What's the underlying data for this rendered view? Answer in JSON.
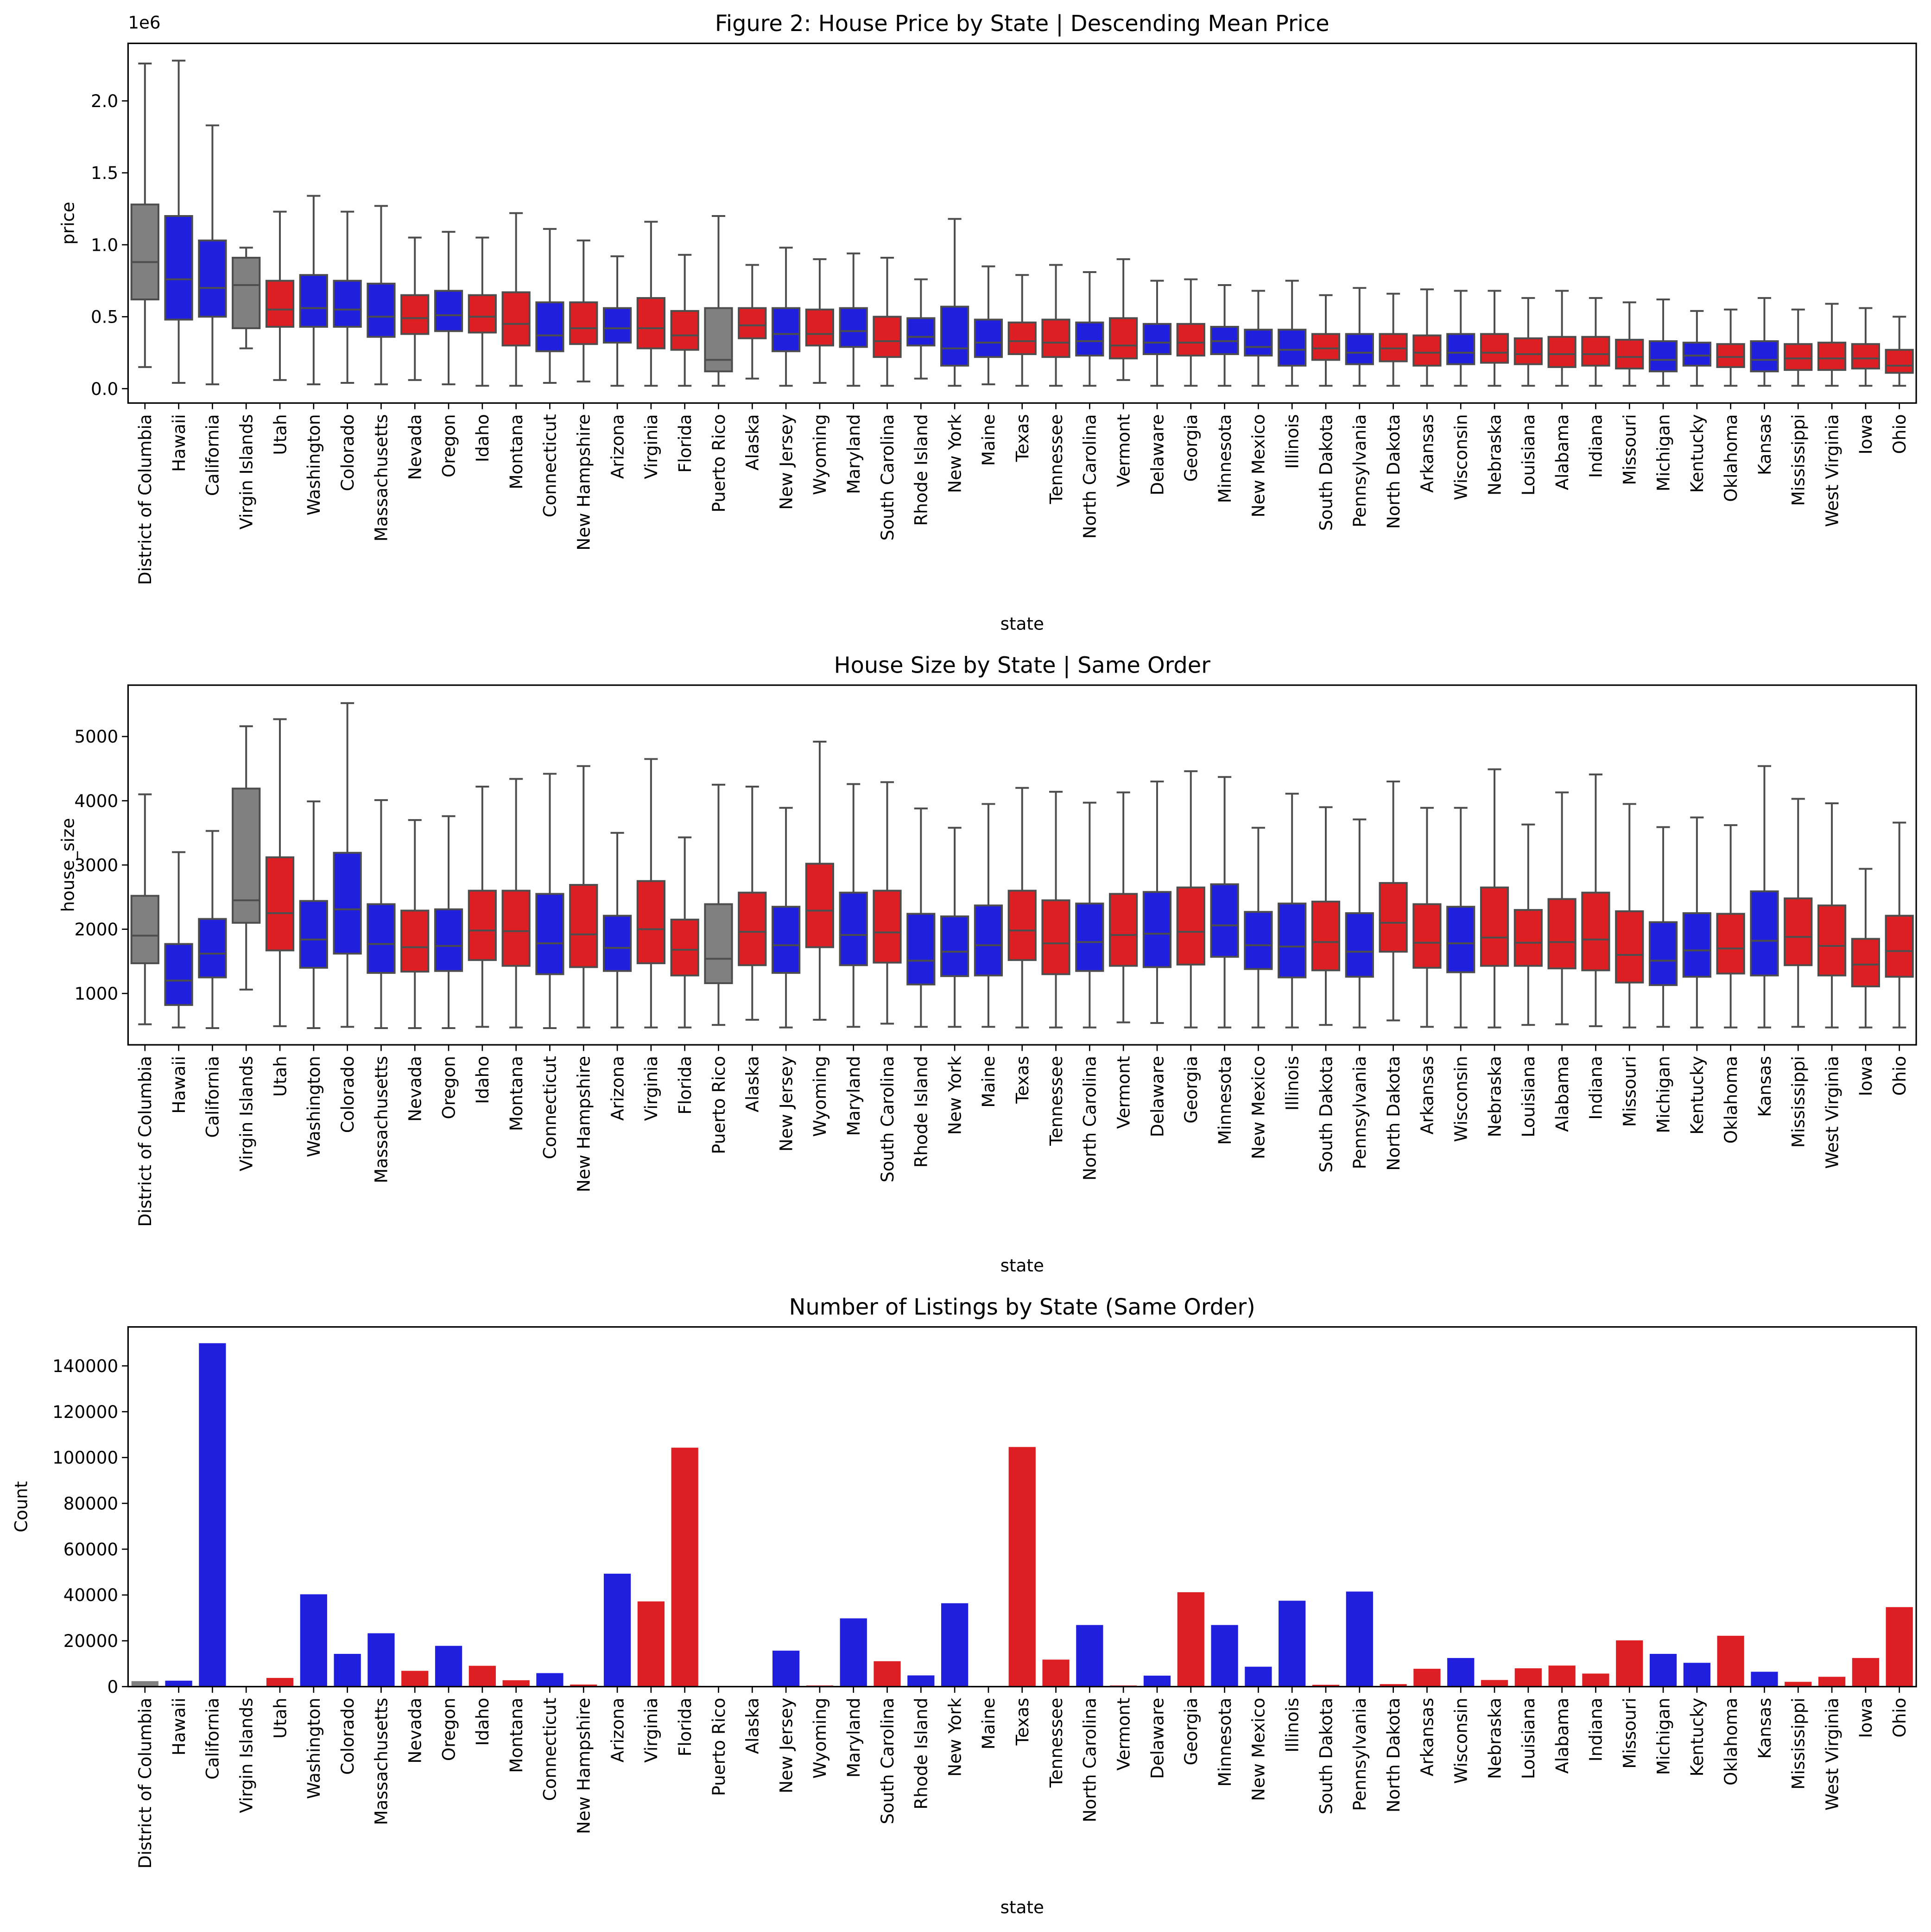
{
  "chart_data": [
    {
      "type": "box",
      "title": "Figure 2: House Price by State | Descending Mean Price",
      "xlabel": "state",
      "ylabel": "price",
      "offset_text": "1e6",
      "ylim": [
        -0.1,
        2.4
      ],
      "yticks": [
        "0.0",
        "0.5",
        "1.0",
        "1.5",
        "2.0"
      ],
      "ytick_values": [
        0,
        0.5,
        1.0,
        1.5,
        2.0
      ],
      "scale": 1000000,
      "boxes": [
        [
          0.15,
          0.62,
          0.88,
          1.28,
          2.26
        ],
        [
          0.04,
          0.48,
          0.76,
          1.2,
          2.28
        ],
        [
          0.03,
          0.5,
          0.7,
          1.03,
          1.83
        ],
        [
          0.28,
          0.42,
          0.72,
          0.91,
          0.98
        ],
        [
          0.06,
          0.43,
          0.55,
          0.75,
          1.23
        ],
        [
          0.03,
          0.43,
          0.56,
          0.79,
          1.34
        ],
        [
          0.04,
          0.43,
          0.55,
          0.75,
          1.23
        ],
        [
          0.03,
          0.36,
          0.5,
          0.73,
          1.27
        ],
        [
          0.06,
          0.38,
          0.49,
          0.65,
          1.05
        ],
        [
          0.03,
          0.4,
          0.51,
          0.68,
          1.09
        ],
        [
          0.02,
          0.39,
          0.5,
          0.65,
          1.05
        ],
        [
          0.02,
          0.3,
          0.45,
          0.67,
          1.22
        ],
        [
          0.04,
          0.26,
          0.37,
          0.6,
          1.11
        ],
        [
          0.05,
          0.31,
          0.42,
          0.6,
          1.03
        ],
        [
          0.02,
          0.32,
          0.42,
          0.56,
          0.92
        ],
        [
          0.02,
          0.28,
          0.42,
          0.63,
          1.16
        ],
        [
          0.02,
          0.27,
          0.37,
          0.54,
          0.93
        ],
        [
          0.02,
          0.12,
          0.2,
          0.56,
          1.2
        ],
        [
          0.07,
          0.35,
          0.44,
          0.56,
          0.86
        ],
        [
          0.02,
          0.26,
          0.38,
          0.56,
          0.98
        ],
        [
          0.04,
          0.3,
          0.38,
          0.55,
          0.9
        ],
        [
          0.02,
          0.29,
          0.4,
          0.56,
          0.94
        ],
        [
          0.02,
          0.22,
          0.33,
          0.5,
          0.91
        ],
        [
          0.07,
          0.3,
          0.36,
          0.49,
          0.76
        ],
        [
          0.02,
          0.16,
          0.28,
          0.57,
          1.18
        ],
        [
          0.03,
          0.22,
          0.32,
          0.48,
          0.85
        ],
        [
          0.02,
          0.24,
          0.33,
          0.46,
          0.79
        ],
        [
          0.02,
          0.22,
          0.32,
          0.48,
          0.86
        ],
        [
          0.02,
          0.23,
          0.33,
          0.46,
          0.81
        ],
        [
          0.06,
          0.21,
          0.3,
          0.49,
          0.9
        ],
        [
          0.02,
          0.24,
          0.32,
          0.45,
          0.75
        ],
        [
          0.02,
          0.23,
          0.32,
          0.45,
          0.76
        ],
        [
          0.02,
          0.24,
          0.33,
          0.43,
          0.72
        ],
        [
          0.02,
          0.23,
          0.29,
          0.41,
          0.68
        ],
        [
          0.02,
          0.16,
          0.27,
          0.41,
          0.75
        ],
        [
          0.02,
          0.2,
          0.28,
          0.38,
          0.65
        ],
        [
          0.02,
          0.17,
          0.25,
          0.38,
          0.7
        ],
        [
          0.02,
          0.19,
          0.28,
          0.38,
          0.66
        ],
        [
          0.02,
          0.16,
          0.25,
          0.37,
          0.69
        ],
        [
          0.02,
          0.17,
          0.25,
          0.38,
          0.68
        ],
        [
          0.02,
          0.18,
          0.25,
          0.38,
          0.68
        ],
        [
          0.02,
          0.17,
          0.24,
          0.35,
          0.63
        ],
        [
          0.02,
          0.15,
          0.24,
          0.36,
          0.68
        ],
        [
          0.02,
          0.16,
          0.24,
          0.36,
          0.63
        ],
        [
          0.02,
          0.14,
          0.22,
          0.34,
          0.6
        ],
        [
          0.02,
          0.12,
          0.2,
          0.33,
          0.62
        ],
        [
          0.02,
          0.16,
          0.23,
          0.32,
          0.54
        ],
        [
          0.02,
          0.15,
          0.22,
          0.31,
          0.55
        ],
        [
          0.02,
          0.12,
          0.2,
          0.33,
          0.63
        ],
        [
          0.02,
          0.13,
          0.21,
          0.31,
          0.55
        ],
        [
          0.02,
          0.13,
          0.21,
          0.32,
          0.59
        ],
        [
          0.02,
          0.14,
          0.21,
          0.31,
          0.56
        ],
        [
          0.02,
          0.11,
          0.16,
          0.27,
          0.5
        ]
      ]
    },
    {
      "type": "box",
      "title": "House Size by State | Same Order",
      "xlabel": "state",
      "ylabel": "house_size",
      "ylim": [
        200,
        5800
      ],
      "yticks": [
        "1000",
        "2000",
        "3000",
        "4000",
        "5000"
      ],
      "ytick_values": [
        1000,
        2000,
        3000,
        4000,
        5000
      ],
      "scale": 1,
      "boxes": [
        [
          520,
          1470,
          1900,
          2520,
          4100
        ],
        [
          470,
          820,
          1200,
          1770,
          3200
        ],
        [
          460,
          1250,
          1620,
          2160,
          3530
        ],
        [
          1060,
          2100,
          2450,
          4190,
          5160
        ],
        [
          490,
          1670,
          2250,
          3120,
          5270
        ],
        [
          460,
          1400,
          1840,
          2440,
          3990
        ],
        [
          480,
          1620,
          2310,
          3190,
          5520
        ],
        [
          460,
          1320,
          1770,
          2390,
          4010
        ],
        [
          460,
          1340,
          1720,
          2290,
          3700
        ],
        [
          460,
          1350,
          1740,
          2310,
          3760
        ],
        [
          480,
          1520,
          1980,
          2600,
          4220
        ],
        [
          470,
          1430,
          1970,
          2600,
          4340
        ],
        [
          460,
          1300,
          1780,
          2550,
          4420
        ],
        [
          470,
          1410,
          1920,
          2690,
          4540
        ],
        [
          470,
          1350,
          1710,
          2210,
          3500
        ],
        [
          470,
          1470,
          2000,
          2750,
          4650
        ],
        [
          470,
          1280,
          1680,
          2150,
          3430
        ],
        [
          510,
          1160,
          1540,
          2390,
          4250
        ],
        [
          590,
          1440,
          1960,
          2570,
          4220
        ],
        [
          470,
          1320,
          1750,
          2350,
          3890
        ],
        [
          590,
          1720,
          2290,
          3020,
          4920
        ],
        [
          480,
          1440,
          1910,
          2570,
          4260
        ],
        [
          530,
          1480,
          1950,
          2600,
          4290
        ],
        [
          480,
          1140,
          1510,
          2240,
          3880
        ],
        [
          480,
          1270,
          1650,
          2200,
          3580
        ],
        [
          480,
          1280,
          1750,
          2370,
          3950
        ],
        [
          470,
          1520,
          1980,
          2600,
          4200
        ],
        [
          470,
          1300,
          1780,
          2450,
          4140
        ],
        [
          470,
          1350,
          1800,
          2400,
          3970
        ],
        [
          550,
          1430,
          1910,
          2550,
          4130
        ],
        [
          540,
          1410,
          1930,
          2580,
          4300
        ],
        [
          470,
          1450,
          1960,
          2650,
          4460
        ],
        [
          470,
          1570,
          2060,
          2700,
          4370
        ],
        [
          470,
          1380,
          1750,
          2270,
          3580
        ],
        [
          470,
          1250,
          1730,
          2400,
          4110
        ],
        [
          510,
          1360,
          1800,
          2430,
          3900
        ],
        [
          470,
          1260,
          1650,
          2250,
          3710
        ],
        [
          580,
          1650,
          2100,
          2720,
          4300
        ],
        [
          480,
          1400,
          1790,
          2390,
          3890
        ],
        [
          470,
          1330,
          1780,
          2350,
          3890
        ],
        [
          470,
          1430,
          1870,
          2650,
          4490
        ],
        [
          510,
          1430,
          1790,
          2300,
          3630
        ],
        [
          520,
          1390,
          1800,
          2470,
          4130
        ],
        [
          490,
          1360,
          1840,
          2570,
          4410
        ],
        [
          470,
          1170,
          1600,
          2280,
          3950
        ],
        [
          480,
          1130,
          1510,
          2110,
          3590
        ],
        [
          470,
          1260,
          1670,
          2250,
          3740
        ],
        [
          470,
          1310,
          1700,
          2240,
          3620
        ],
        [
          470,
          1280,
          1820,
          2590,
          4540
        ],
        [
          480,
          1440,
          1880,
          2480,
          4030
        ],
        [
          470,
          1280,
          1740,
          2370,
          3960
        ],
        [
          470,
          1110,
          1450,
          1850,
          2940
        ],
        [
          470,
          1260,
          1660,
          2210,
          3660
        ]
      ]
    },
    {
      "type": "bar",
      "title": "Number of Listings by State (Same Order)",
      "xlabel": "state",
      "ylabel": "Count",
      "ylim": [
        0,
        157000
      ],
      "yticks": [
        "0",
        "20000",
        "40000",
        "60000",
        "80000",
        "100000",
        "120000",
        "140000"
      ],
      "ytick_values": [
        0,
        20000,
        40000,
        60000,
        80000,
        100000,
        120000,
        140000
      ],
      "values": [
        2400,
        2600,
        149900,
        30,
        3800,
        40300,
        14300,
        23300,
        6900,
        17800,
        9100,
        2800,
        5900,
        900,
        49300,
        37200,
        104300,
        200,
        300,
        15700,
        500,
        29800,
        11100,
        4900,
        36400,
        200,
        104600,
        11800,
        26900,
        500,
        4800,
        41200,
        26900,
        8700,
        37500,
        800,
        41500,
        1100,
        7800,
        12500,
        2900,
        8000,
        9200,
        5700,
        20200,
        14300,
        10400,
        22200,
        6500,
        2100,
        4300,
        12500,
        34700
      ]
    }
  ],
  "categories": [
    "District of Columbia",
    "Hawaii",
    "California",
    "Virgin Islands",
    "Utah",
    "Washington",
    "Colorado",
    "Massachusetts",
    "Nevada",
    "Oregon",
    "Idaho",
    "Montana",
    "Connecticut",
    "New Hampshire",
    "Arizona",
    "Virginia",
    "Florida",
    "Puerto Rico",
    "Alaska",
    "New Jersey",
    "Wyoming",
    "Maryland",
    "South Carolina",
    "Rhode Island",
    "New York",
    "Maine",
    "Texas",
    "Tennessee",
    "North Carolina",
    "Vermont",
    "Delaware",
    "Georgia",
    "Minnesota",
    "New Mexico",
    "Illinois",
    "South Dakota",
    "Pennsylvania",
    "North Dakota",
    "Arkansas",
    "Wisconsin",
    "Nebraska",
    "Louisiana",
    "Alabama",
    "Indiana",
    "Missouri",
    "Michigan",
    "Kentucky",
    "Oklahoma",
    "Kansas",
    "Mississippi",
    "West Virginia",
    "Iowa",
    "Ohio"
  ],
  "party": [
    "G",
    "B",
    "B",
    "G",
    "R",
    "B",
    "B",
    "B",
    "R",
    "B",
    "R",
    "R",
    "B",
    "R",
    "B",
    "R",
    "R",
    "G",
    "R",
    "B",
    "R",
    "B",
    "R",
    "B",
    "B",
    "B",
    "R",
    "R",
    "B",
    "R",
    "B",
    "R",
    "B",
    "B",
    "B",
    "R",
    "B",
    "R",
    "R",
    "B",
    "R",
    "R",
    "R",
    "R",
    "R",
    "B",
    "B",
    "R",
    "B",
    "R",
    "R",
    "R",
    "R"
  ],
  "colors": {
    "R": "#dd1f23",
    "B": "#1f1fdd",
    "G": "#808080",
    "whisker": "#4d4d4d"
  }
}
